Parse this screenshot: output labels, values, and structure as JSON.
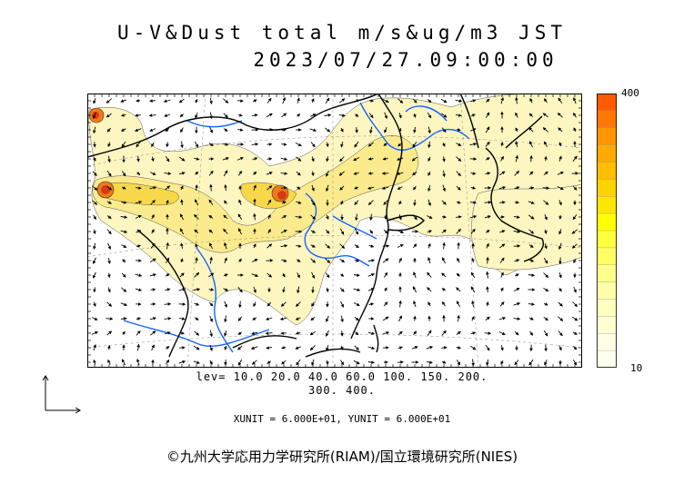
{
  "title": {
    "line1": "U-V&Dust total m/s&ug/m3 JST",
    "line2": "2023/07/27.09:00:00"
  },
  "colorbar": {
    "max_label": "400",
    "min_label": "10",
    "colors": [
      "#ff5a00",
      "#ff7800",
      "#ff9600",
      "#ffaa00",
      "#ffbe00",
      "#ffd200",
      "#ffe600",
      "#ffff00",
      "#ffff3c",
      "#ffff64",
      "#ffff8c",
      "#ffffaa",
      "#ffffbe",
      "#ffffd2",
      "#ffffe6",
      "#fffff0"
    ]
  },
  "levels": {
    "line1": "lev= 10.0 20.0 40.0 60.0 100. 150. 200.",
    "line2": "300. 400."
  },
  "units": "XUNIT = 6.000E+01, YUNIT = 6.000E+01",
  "credit": "©九州大学応用力学研究所(RIAM)/国立環境研究所(NIES)",
  "map_colors": {
    "dust_light": "#fdf6c0",
    "dust_mid": "#fbeb8c",
    "dust_high": "#f7d84a",
    "hot_orange": "#f07a18",
    "hot_red": "#d83a10",
    "rivers": "#1464ff",
    "coast": "#000000"
  }
}
